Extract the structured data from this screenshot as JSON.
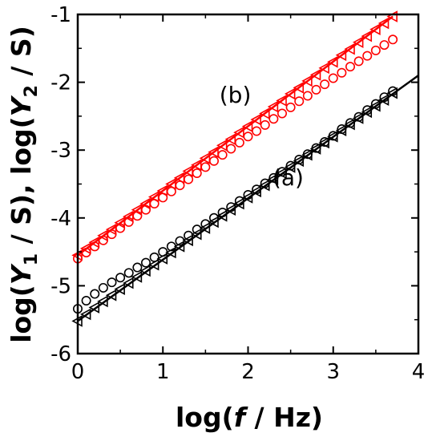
{
  "chart_data": {
    "type": "scatter",
    "xlabel": {
      "prefix": "log(",
      "var": "f",
      "suffix": " / Hz)"
    },
    "ylabel": {
      "p1": "log(",
      "v1": "Y",
      "s1": "1",
      "m1": " / S), log(",
      "v2": "Y",
      "s2": "2",
      "e2": " / S)"
    },
    "xlim": [
      0,
      4
    ],
    "ylim": [
      -6,
      -1
    ],
    "x_ticks": [
      "0",
      "1",
      "2",
      "3",
      "4"
    ],
    "y_ticks": [
      "-6",
      "-5",
      "-4",
      "-3",
      "-2",
      "-1"
    ],
    "grid": false,
    "annotations": [
      {
        "text": "(a)",
        "x": 2.47,
        "y": -3.52
      },
      {
        "text": "(b)",
        "x": 1.85,
        "y": -2.3
      }
    ],
    "series": [
      {
        "marker": "circle",
        "color": "#000000",
        "x": [
          0,
          0.1,
          0.2,
          0.3,
          0.4,
          0.5,
          0.6,
          0.7,
          0.8,
          0.9,
          1.0,
          1.1,
          1.2,
          1.3,
          1.4,
          1.5,
          1.6,
          1.7,
          1.8,
          1.9,
          2.0,
          2.1,
          2.2,
          2.3,
          2.4,
          2.5,
          2.6,
          2.7,
          2.8,
          2.9,
          3.0,
          3.1,
          3.2,
          3.3,
          3.4,
          3.5,
          3.6,
          3.7
        ],
        "y": [
          -5.34,
          -5.22,
          -5.12,
          -5.03,
          -4.95,
          -4.88,
          -4.81,
          -4.73,
          -4.66,
          -4.58,
          -4.5,
          -4.42,
          -4.34,
          -4.26,
          -4.17,
          -4.09,
          -4.0,
          -3.92,
          -3.84,
          -3.75,
          -3.66,
          -3.58,
          -3.49,
          -3.41,
          -3.32,
          -3.23,
          -3.14,
          -3.06,
          -2.97,
          -2.88,
          -2.79,
          -2.69,
          -2.6,
          -2.51,
          -2.41,
          -2.32,
          -2.22,
          -2.13
        ]
      },
      {
        "marker": "triangle-left",
        "color": "#000000",
        "x": [
          0,
          0.1,
          0.2,
          0.3,
          0.4,
          0.5,
          0.6,
          0.7,
          0.8,
          0.9,
          1.0,
          1.1,
          1.2,
          1.3,
          1.4,
          1.5,
          1.6,
          1.7,
          1.8,
          1.9,
          2.0,
          2.1,
          2.2,
          2.3,
          2.4,
          2.5,
          2.6,
          2.7,
          2.8,
          2.9,
          3.0,
          3.1,
          3.2,
          3.3,
          3.4,
          3.5,
          3.6,
          3.7
        ],
        "y": [
          -5.52,
          -5.42,
          -5.32,
          -5.23,
          -5.14,
          -5.05,
          -4.96,
          -4.87,
          -4.78,
          -4.69,
          -4.6,
          -4.51,
          -4.42,
          -4.33,
          -4.24,
          -4.15,
          -4.06,
          -3.97,
          -3.88,
          -3.79,
          -3.7,
          -3.61,
          -3.52,
          -3.43,
          -3.34,
          -3.25,
          -3.16,
          -3.07,
          -2.98,
          -2.89,
          -2.8,
          -2.71,
          -2.62,
          -2.53,
          -2.44,
          -2.35,
          -2.26,
          -2.16
        ]
      },
      {
        "marker": "circle",
        "color": "#ff0000",
        "x": [
          0,
          0.1,
          0.2,
          0.3,
          0.4,
          0.5,
          0.6,
          0.7,
          0.8,
          0.9,
          1.0,
          1.1,
          1.2,
          1.3,
          1.4,
          1.5,
          1.6,
          1.7,
          1.8,
          1.9,
          2.0,
          2.1,
          2.2,
          2.3,
          2.4,
          2.5,
          2.6,
          2.7,
          2.8,
          2.9,
          3.0,
          3.1,
          3.2,
          3.3,
          3.4,
          3.5,
          3.6,
          3.7
        ],
        "y": [
          -4.6,
          -4.51,
          -4.42,
          -4.33,
          -4.24,
          -4.15,
          -4.06,
          -3.97,
          -3.88,
          -3.79,
          -3.7,
          -3.61,
          -3.52,
          -3.43,
          -3.34,
          -3.25,
          -3.16,
          -3.07,
          -2.98,
          -2.89,
          -2.8,
          -2.72,
          -2.63,
          -2.54,
          -2.46,
          -2.37,
          -2.28,
          -2.2,
          -2.11,
          -2.03,
          -1.94,
          -1.86,
          -1.77,
          -1.69,
          -1.61,
          -1.53,
          -1.45,
          -1.37
        ]
      },
      {
        "marker": "triangle-left",
        "color": "#ff0000",
        "x": [
          0,
          0.1,
          0.2,
          0.3,
          0.4,
          0.5,
          0.6,
          0.7,
          0.8,
          0.9,
          1.0,
          1.1,
          1.2,
          1.3,
          1.4,
          1.5,
          1.6,
          1.7,
          1.8,
          1.9,
          2.0,
          2.1,
          2.2,
          2.3,
          2.4,
          2.5,
          2.6,
          2.7,
          2.8,
          2.9,
          3.0,
          3.1,
          3.2,
          3.3,
          3.4,
          3.5,
          3.6,
          3.7
        ],
        "y": [
          -4.55,
          -4.45,
          -4.36,
          -4.26,
          -4.17,
          -4.07,
          -3.98,
          -3.88,
          -3.79,
          -3.69,
          -3.6,
          -3.5,
          -3.41,
          -3.31,
          -3.22,
          -3.12,
          -3.03,
          -2.93,
          -2.84,
          -2.74,
          -2.65,
          -2.55,
          -2.46,
          -2.36,
          -2.27,
          -2.17,
          -2.08,
          -1.98,
          -1.89,
          -1.79,
          -1.7,
          -1.6,
          -1.51,
          -1.41,
          -1.32,
          -1.22,
          -1.13,
          -1.03
        ]
      }
    ],
    "fit_lines": [
      {
        "color": "#000000",
        "x": [
          0,
          4
        ],
        "y": [
          -5.52,
          -1.9
        ]
      },
      {
        "color": "#ff0000",
        "x": [
          0,
          3.7
        ],
        "y": [
          -4.55,
          -1.03
        ]
      }
    ]
  }
}
